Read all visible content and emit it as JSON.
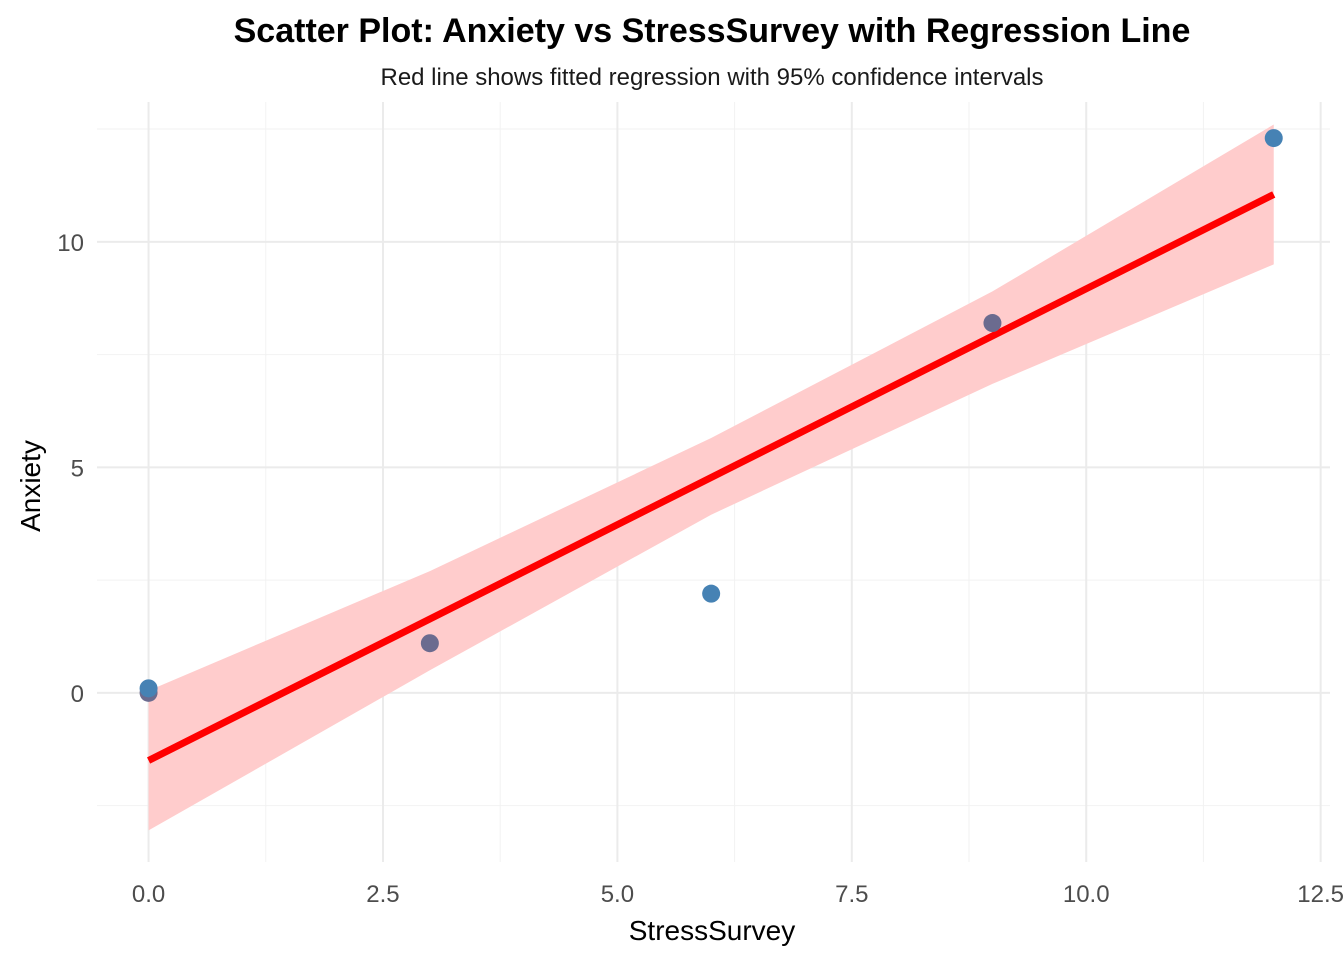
{
  "chart_data": {
    "type": "scatter",
    "title": "Scatter Plot: Anxiety vs StressSurvey with Regression Line",
    "subtitle": "Red line shows fitted regression with 95% confidence intervals",
    "xlabel": "StressSurvey",
    "ylabel": "Anxiety",
    "xlim": [
      -0.55,
      12.6
    ],
    "ylim": [
      -3.75,
      13.1
    ],
    "x_ticks": [
      0.0,
      2.5,
      5.0,
      7.5,
      10.0,
      12.5
    ],
    "x_tick_labels": [
      "0.0",
      "2.5",
      "5.0",
      "7.5",
      "10.0",
      "12.5"
    ],
    "y_ticks": [
      0,
      5,
      10
    ],
    "y_tick_labels": [
      "0",
      "5",
      "10"
    ],
    "grid": true,
    "points": [
      {
        "x": 0,
        "y": 0.0,
        "color": "#6b6b8f"
      },
      {
        "x": 0,
        "y": 0.1,
        "color": "#4682b4"
      },
      {
        "x": 3,
        "y": 1.1,
        "color": "#6b6b8f"
      },
      {
        "x": 6,
        "y": 2.2,
        "color": "#4682b4"
      },
      {
        "x": 9,
        "y": 8.2,
        "color": "#6b6b8f"
      },
      {
        "x": 12,
        "y": 12.3,
        "color": "#4682b4"
      }
    ],
    "regression": {
      "x": [
        0,
        12
      ],
      "y": [
        -1.5,
        11.05
      ],
      "color": "#ff0000",
      "ci": [
        {
          "x": 0,
          "lower": -3.05,
          "upper": 0.05
        },
        {
          "x": 3,
          "lower": 0.5,
          "upper": 2.7
        },
        {
          "x": 6,
          "lower": 3.95,
          "upper": 5.65
        },
        {
          "x": 9,
          "lower": 6.85,
          "upper": 8.9
        },
        {
          "x": 12,
          "lower": 9.5,
          "upper": 12.6
        }
      ],
      "ci_color": "#ffcccc"
    }
  }
}
